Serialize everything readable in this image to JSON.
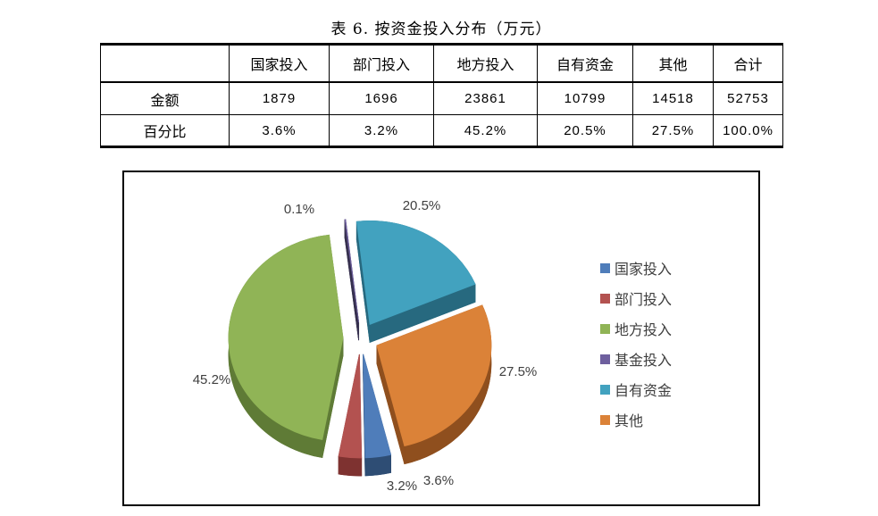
{
  "table_title": "表 6. 按资金投入分布（万元）",
  "table": {
    "corner_label": "",
    "columns": [
      "国家投入",
      "部门投入",
      "地方投入",
      "自有资金",
      "其他",
      "合计"
    ],
    "rows": [
      {
        "label": "金额",
        "values": [
          "1879",
          "1696",
          "23861",
          "10799",
          "14518",
          "52753"
        ]
      },
      {
        "label": "百分比",
        "values": [
          "3.6%",
          "3.2%",
          "45.2%",
          "20.5%",
          "27.5%",
          "100.0%"
        ]
      }
    ]
  },
  "chart_data": {
    "type": "pie",
    "style": "3d-exploded",
    "title": "",
    "categories": [
      "国家投入",
      "部门投入",
      "地方投入",
      "基金投入",
      "自有资金",
      "其他"
    ],
    "values": [
      3.6,
      3.2,
      45.2,
      0.1,
      20.5,
      27.5
    ],
    "labels": [
      "3.6%",
      "3.2%",
      "45.2%",
      "0.1%",
      "20.5%",
      "27.5%"
    ],
    "colors": [
      "#4F7DBA",
      "#B35250",
      "#90B456",
      "#6E5F9E",
      "#42A2BF",
      "#DB8238"
    ],
    "side_colors": [
      "#2E4D74",
      "#7E3230",
      "#5F7B36",
      "#36304E",
      "#27697F",
      "#8F4F1E"
    ],
    "label_color": "#3F3F3F",
    "legend_position": "right",
    "start_angle_deg": 166
  }
}
